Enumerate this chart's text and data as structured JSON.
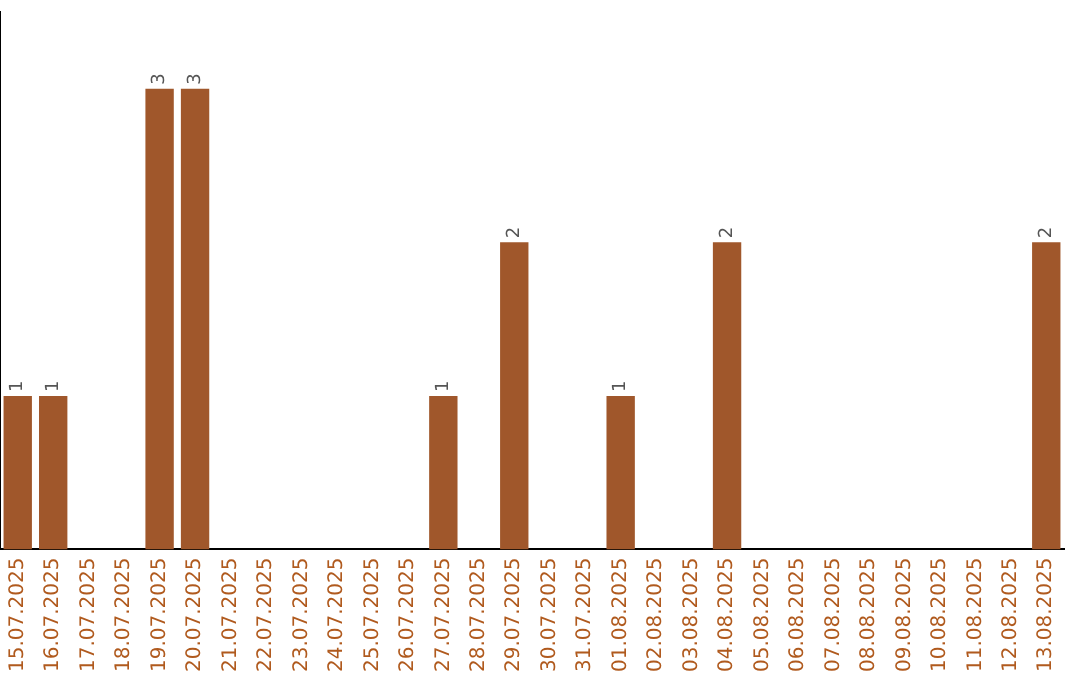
{
  "chart_data": {
    "type": "bar",
    "categories": [
      "15.07.2025",
      "16.07.2025",
      "17.07.2025",
      "18.07.2025",
      "19.07.2025",
      "20.07.2025",
      "21.07.2025",
      "22.07.2025",
      "23.07.2025",
      "24.07.2025",
      "25.07.2025",
      "26.07.2025",
      "27.07.2025",
      "28.07.2025",
      "29.07.2025",
      "30.07.2025",
      "31.07.2025",
      "01.08.2025",
      "02.08.2025",
      "03.08.2025",
      "04.08.2025",
      "05.08.2025",
      "06.08.2025",
      "07.08.2025",
      "08.08.2025",
      "09.08.2025",
      "10.08.2025",
      "11.08.2025",
      "12.08.2025",
      "13.08.2025"
    ],
    "values": [
      1,
      1,
      0,
      0,
      3,
      3,
      0,
      0,
      0,
      0,
      0,
      0,
      1,
      0,
      2,
      0,
      0,
      1,
      0,
      0,
      2,
      0,
      0,
      0,
      0,
      0,
      0,
      0,
      0,
      2
    ],
    "value_labels": [
      "1",
      "1",
      null,
      null,
      "3",
      "3",
      null,
      null,
      null,
      null,
      null,
      null,
      "1",
      null,
      "2",
      null,
      null,
      "1",
      null,
      null,
      "2",
      null,
      null,
      null,
      null,
      null,
      null,
      null,
      null,
      "2"
    ],
    "color": "#a0572b",
    "grid": false,
    "legend": false
  }
}
